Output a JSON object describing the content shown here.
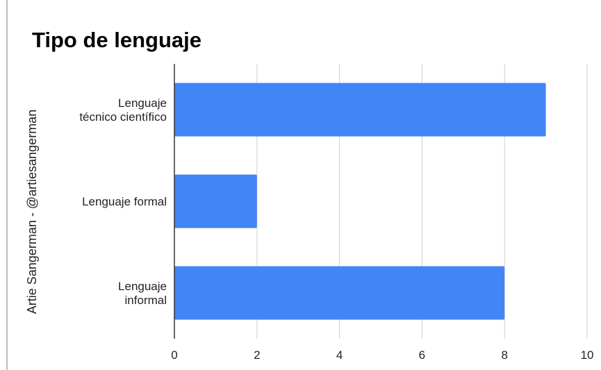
{
  "chart_data": {
    "type": "bar",
    "orientation": "horizontal",
    "title": "Tipo de lenguaje",
    "ylabel": "Artie Sangerman - @artiesangerman",
    "xlabel": "",
    "categories": [
      [
        "Lenguaje",
        "técnico científico"
      ],
      [
        "Lenguaje formal"
      ],
      [
        "Lenguaje",
        "informal"
      ]
    ],
    "values": [
      9,
      2,
      8
    ],
    "xlim": [
      0,
      10
    ],
    "xticks": [
      "0",
      "2",
      "4",
      "6",
      "8",
      "10"
    ],
    "grid": true,
    "bar_color": "#4285f4"
  }
}
